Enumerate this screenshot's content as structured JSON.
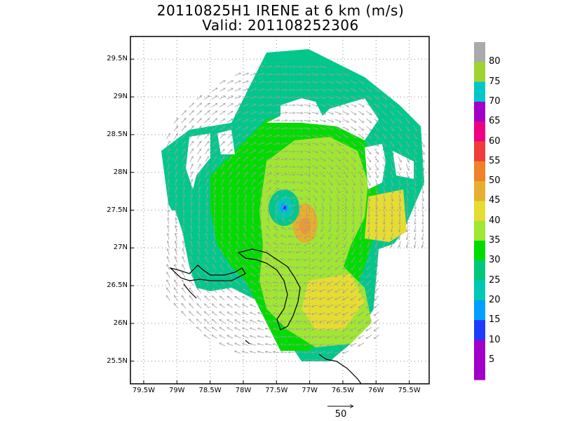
{
  "title": {
    "line1": "20110825H1 IRENE at 6 km (m/s)",
    "line2": "Valid: 201108252306"
  },
  "axes": {
    "lat_ticks": [
      "29.5N",
      "29N",
      "28.5N",
      "28N",
      "27.5N",
      "27N",
      "26.5N",
      "26N",
      "25.5N"
    ],
    "lat_values": [
      29.5,
      29.0,
      28.5,
      28.0,
      27.5,
      27.0,
      26.5,
      26.0,
      25.5
    ],
    "lon_ticks": [
      "79.5W",
      "79W",
      "78.5W",
      "78W",
      "77.5W",
      "77W",
      "76.5W",
      "76W",
      "75.5W"
    ],
    "lon_values": [
      -79.5,
      -79.0,
      -78.5,
      -78.0,
      -77.5,
      -77.0,
      -76.5,
      -76.0,
      -75.5
    ],
    "lat_range": [
      25.2,
      29.8
    ],
    "lon_range": [
      -79.7,
      -75.2
    ],
    "grid": "dotted"
  },
  "colorbar": {
    "labels": [
      "80",
      "75",
      "70",
      "65",
      "60",
      "55",
      "50",
      "45",
      "40",
      "35",
      "30",
      "25",
      "20",
      "15",
      "10",
      "5"
    ],
    "colors": [
      "#aaaaaa",
      "#a0d232",
      "#00c8c8",
      "#a000c8",
      "#f00082",
      "#f03c3c",
      "#f08228",
      "#e6af2d",
      "#e6dc32",
      "#a0e632",
      "#00dc00",
      "#00c87a",
      "#00c8b4",
      "#00a0ff",
      "#1e3cff",
      "#a000c8",
      "#a000c8"
    ]
  },
  "wind_field": {
    "storm": "IRENE",
    "center_lat": 27.45,
    "center_lon": -77.25,
    "arrow_color": "#a0a0a0"
  },
  "reference_vector": {
    "label": "50",
    "units": "m/s"
  }
}
